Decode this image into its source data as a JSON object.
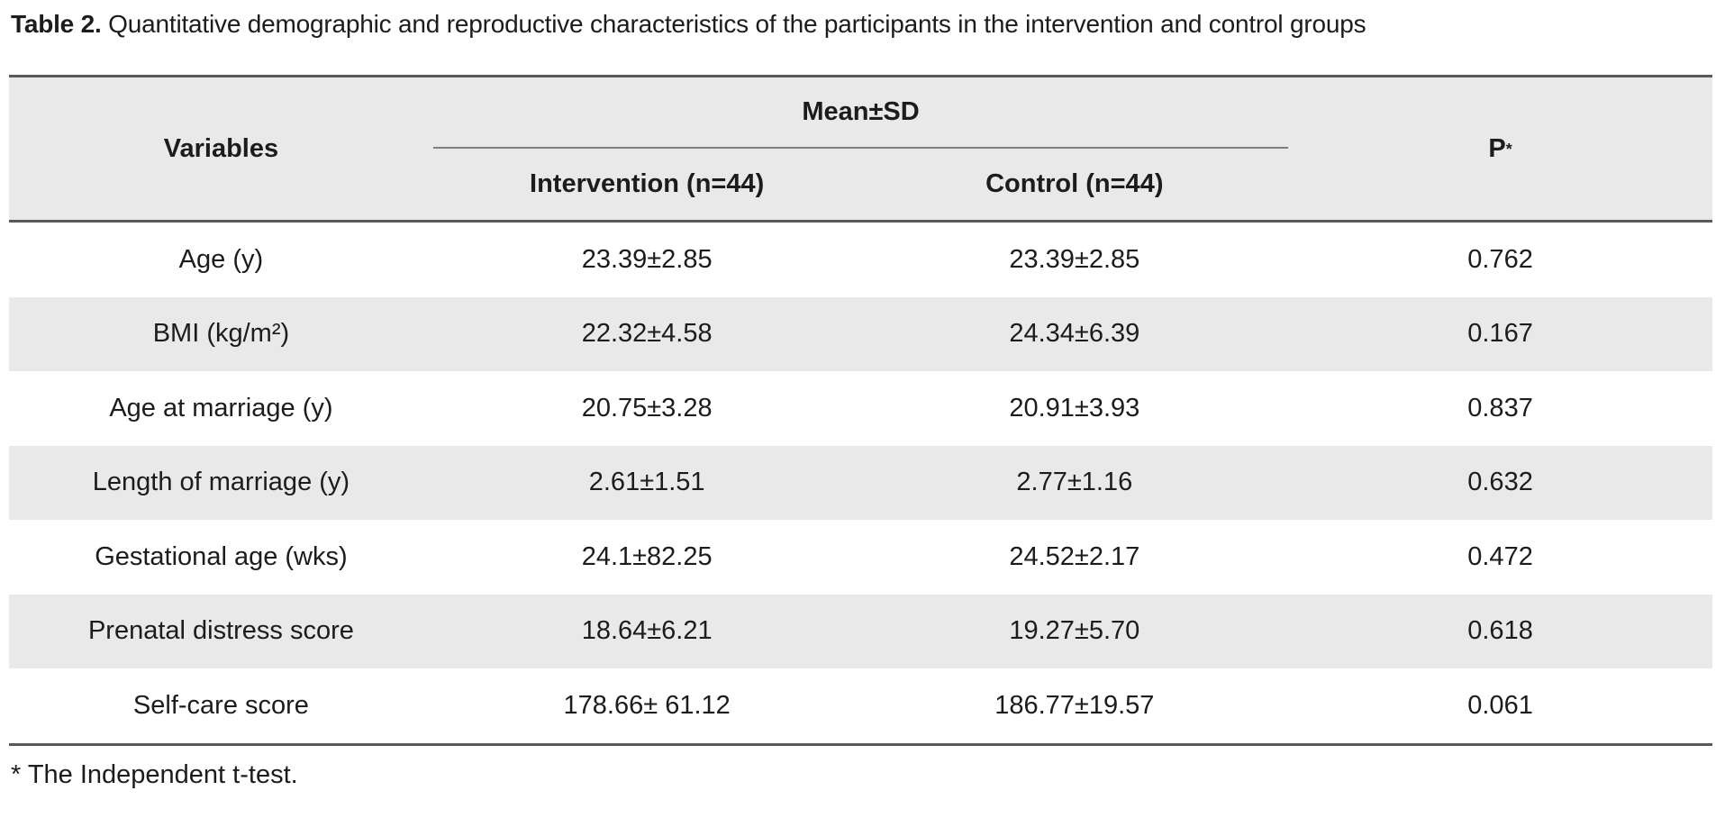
{
  "title": {
    "label": "Table 2.",
    "text": " Quantitative demographic and reproductive characteristics of the participants in the intervention and control groups"
  },
  "table": {
    "header": {
      "variables": "Variables",
      "mean_sd": "Mean±SD",
      "intervention": "Intervention (n=44)",
      "control": "Control (n=44)",
      "p_label": "P",
      "p_sup": "*"
    },
    "rows": [
      {
        "variable": "Age (y)",
        "intervention": "23.39±2.85",
        "control": "23.39±2.85",
        "p": "0.762"
      },
      {
        "variable": "BMI (kg/m²)",
        "intervention": "22.32±4.58",
        "control": "24.34±6.39",
        "p": "0.167"
      },
      {
        "variable": "Age at marriage (y)",
        "intervention": "20.75±3.28",
        "control": "20.91±3.93",
        "p": "0.837"
      },
      {
        "variable": "Length of marriage (y)",
        "intervention": "2.61±1.51",
        "control": "2.77±1.16",
        "p": "0.632"
      },
      {
        "variable": "Gestational age (wks)",
        "intervention": "24.1±82.25",
        "control": "24.52±2.17",
        "p": "0.472"
      },
      {
        "variable": "Prenatal distress score",
        "intervention": "18.64±6.21",
        "control": "19.27±5.70",
        "p": "0.618"
      },
      {
        "variable": "Self-care score",
        "intervention": "178.66± 61.12",
        "control": "186.77±19.57",
        "p": "0.061"
      }
    ],
    "footnote": "* The Independent t-test."
  },
  "colors": {
    "shade": "#e9e9e9",
    "border_dark": "#595959",
    "border_mid": "#7f7f7f",
    "text": "#1c1c1c",
    "background": "#ffffff"
  }
}
